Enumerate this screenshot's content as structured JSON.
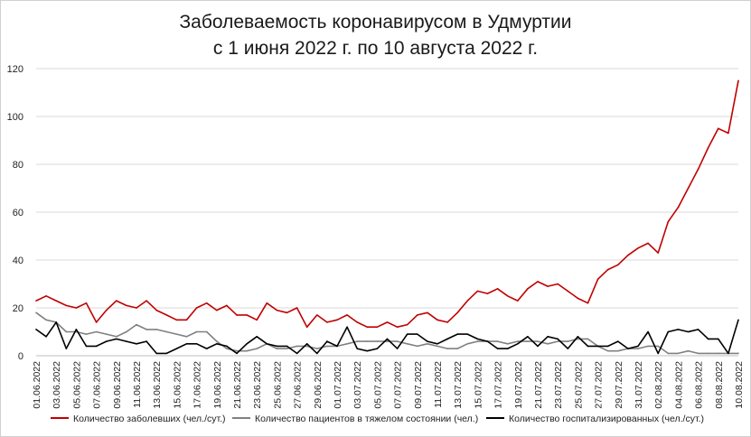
{
  "chart_data": {
    "type": "line",
    "title": "Заболеваемость коронавирусом в Удмуртии",
    "subtitle": "с 1 июня 2022 г. по 10 августа 2022 г.",
    "xlabel": "",
    "ylabel": "",
    "ylim": [
      0,
      120
    ],
    "yticks": [
      0,
      20,
      40,
      60,
      80,
      100,
      120
    ],
    "grid": true,
    "legend_position": "bottom",
    "x_tick_labels": [
      "01.06.2022",
      "03.06.2022",
      "05.06.2022",
      "07.06.2022",
      "09.06.2022",
      "11.06.2022",
      "13.06.2022",
      "15.06.2022",
      "17.06.2022",
      "19.06.2022",
      "21.06.2022",
      "23.06.2022",
      "25.06.2022",
      "27.06.2022",
      "29.06.2022",
      "01.07.2022",
      "03.07.2022",
      "05.07.2022",
      "07.07.2022",
      "09.07.2022",
      "11.07.2022",
      "13.07.2022",
      "15.07.2022",
      "17.07.2022",
      "19.07.2022",
      "21.07.2022",
      "23.07.2022",
      "25.07.2022",
      "27.07.2022",
      "29.07.2022",
      "31.07.2022",
      "02.08.2022",
      "04.08.2022",
      "06.08.2022",
      "08.08.2022",
      "10.08.2022"
    ],
    "series": [
      {
        "name": "Количество заболевших (чел./сут.)",
        "color": "#c00000",
        "values": [
          23,
          25,
          23,
          21,
          20,
          22,
          14,
          19,
          23,
          21,
          20,
          23,
          19,
          17,
          15,
          15,
          20,
          22,
          19,
          21,
          17,
          17,
          15,
          22,
          19,
          18,
          20,
          12,
          17,
          14,
          15,
          17,
          14,
          12,
          12,
          14,
          12,
          13,
          17,
          18,
          15,
          14,
          18,
          23,
          27,
          26,
          28,
          25,
          23,
          28,
          31,
          29,
          30,
          27,
          24,
          22,
          32,
          36,
          38,
          42,
          45,
          47,
          43,
          56,
          62,
          70,
          78,
          87,
          95,
          93,
          115
        ]
      },
      {
        "name": "Количество пациентов в тяжелом состоянии (чел.)",
        "color": "#808080",
        "values": [
          18,
          15,
          14,
          10,
          10,
          9,
          10,
          9,
          8,
          10,
          13,
          11,
          11,
          10,
          9,
          8,
          10,
          10,
          6,
          3,
          2,
          2,
          3,
          5,
          3,
          3,
          4,
          4,
          3,
          4,
          4,
          5,
          6,
          6,
          6,
          6,
          6,
          5,
          4,
          5,
          4,
          3,
          3,
          5,
          6,
          6,
          6,
          5,
          6,
          6,
          6,
          5,
          6,
          6,
          7,
          7,
          4,
          2,
          2,
          3,
          3,
          4,
          4,
          1,
          1,
          2,
          1,
          1,
          1,
          1,
          1
        ]
      },
      {
        "name": "Количество госпитализированных (чел./сут.)",
        "color": "#000000",
        "values": [
          11,
          8,
          14,
          3,
          11,
          4,
          4,
          6,
          7,
          6,
          5,
          6,
          1,
          1,
          3,
          5,
          5,
          3,
          5,
          4,
          1,
          5,
          8,
          5,
          4,
          4,
          1,
          5,
          1,
          6,
          4,
          12,
          3,
          2,
          3,
          7,
          3,
          9,
          9,
          6,
          5,
          7,
          9,
          9,
          7,
          6,
          3,
          3,
          5,
          8,
          4,
          8,
          7,
          3,
          8,
          4,
          4,
          4,
          6,
          3,
          4,
          10,
          1,
          10,
          11,
          10,
          11,
          7,
          7,
          1,
          15
        ]
      }
    ]
  }
}
